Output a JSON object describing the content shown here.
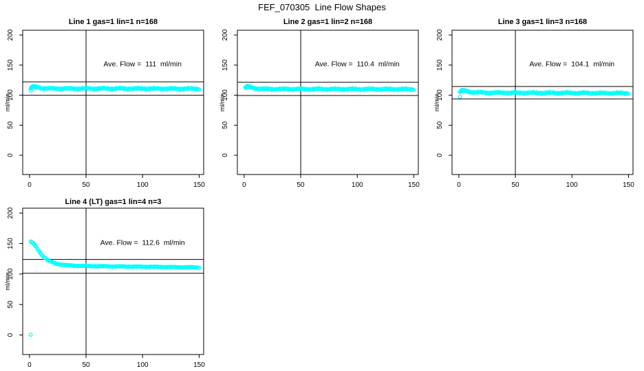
{
  "page_title": "FEF_070305  Line Flow Shapes",
  "chart_data": [
    {
      "type": "scatter",
      "title": "Line 1 gas=1 lin=1 n=168",
      "annotation": "Ave. Flow =  111  ml/min",
      "ave_flow": 111,
      "n": 168,
      "ylabel": "ml/min",
      "x_ticks": [
        0,
        50,
        100,
        150
      ],
      "y_ticks": [
        0,
        50,
        100,
        150,
        200
      ],
      "xlim": [
        -6,
        154
      ],
      "ylim": [
        -32,
        208
      ],
      "vline_x": 50,
      "hlines": [
        122.1,
        99.9
      ],
      "marker_color": "#00ffff",
      "annotation_pos": [
        100,
        148
      ],
      "x_range": [
        1,
        150
      ],
      "wobble": 0.9,
      "anchors": [
        [
          1,
          110.5
        ],
        [
          2,
          112.5
        ],
        [
          3,
          113.8
        ],
        [
          4,
          114.2
        ],
        [
          5,
          114
        ],
        [
          6,
          113.6
        ],
        [
          8,
          112.8
        ],
        [
          10,
          112
        ],
        [
          13,
          111.4
        ],
        [
          18,
          111
        ],
        [
          30,
          110.9
        ],
        [
          60,
          111
        ],
        [
          100,
          110.9
        ],
        [
          150,
          110.6
        ]
      ],
      "extra_points": [
        [
          1.5,
          112
        ],
        [
          2,
          113.5
        ],
        [
          2.5,
          114.5
        ],
        [
          3,
          115
        ],
        [
          3.5,
          114
        ],
        [
          4,
          115
        ],
        [
          4.5,
          113.5
        ],
        [
          5,
          114.5
        ],
        [
          5.5,
          113
        ],
        [
          6,
          114
        ],
        [
          7,
          113.5
        ],
        [
          8,
          113
        ]
      ],
      "outliers": [
        [
          1,
          107.5
        ]
      ]
    },
    {
      "type": "scatter",
      "title": "Line 2 gas=1 lin=2 n=168",
      "annotation": "Ave. Flow =  110.4  ml/min",
      "ave_flow": 110.4,
      "n": 168,
      "ylabel": "ml/min",
      "x_ticks": [
        0,
        50,
        100,
        150
      ],
      "y_ticks": [
        0,
        50,
        100,
        150,
        200
      ],
      "xlim": [
        -6,
        154
      ],
      "ylim": [
        -32,
        208
      ],
      "vline_x": 50,
      "hlines": [
        121.4,
        99.4
      ],
      "marker_color": "#00ffff",
      "annotation_pos": [
        100,
        148
      ],
      "x_range": [
        1,
        150
      ],
      "wobble": 0.9,
      "anchors": [
        [
          1,
          112
        ],
        [
          2,
          113.5
        ],
        [
          3,
          114.3
        ],
        [
          4,
          114
        ],
        [
          5,
          113.5
        ],
        [
          7,
          112.6
        ],
        [
          9,
          111.8
        ],
        [
          12,
          111
        ],
        [
          16,
          110.5
        ],
        [
          25,
          110.2
        ],
        [
          60,
          110.1
        ],
        [
          150,
          109.9
        ]
      ],
      "extra_points": [
        [
          1.5,
          112.5
        ],
        [
          2,
          114
        ],
        [
          2.5,
          115
        ],
        [
          3,
          114
        ],
        [
          3.5,
          115
        ],
        [
          4,
          113.5
        ],
        [
          4.5,
          114.5
        ],
        [
          5,
          113
        ],
        [
          6,
          113.5
        ],
        [
          7,
          112.5
        ],
        [
          8,
          112
        ]
      ],
      "outliers": []
    },
    {
      "type": "scatter",
      "title": "Line 3 gas=1 lin=3 n=168",
      "annotation": "Ave. Flow =  104.1  ml/min",
      "ave_flow": 104.1,
      "n": 168,
      "ylabel": "ml/min",
      "x_ticks": [
        0,
        50,
        100,
        150
      ],
      "y_ticks": [
        0,
        50,
        100,
        150,
        200
      ],
      "xlim": [
        -6,
        154
      ],
      "ylim": [
        -32,
        208
      ],
      "vline_x": 50,
      "hlines": [
        114.5,
        93.7
      ],
      "marker_color": "#00ffff",
      "annotation_pos": [
        100,
        148
      ],
      "x_range": [
        1,
        150
      ],
      "wobble": 0.9,
      "anchors": [
        [
          1,
          104.5
        ],
        [
          2,
          106.5
        ],
        [
          3,
          107.6
        ],
        [
          4,
          107.8
        ],
        [
          5,
          107.4
        ],
        [
          7,
          106.6
        ],
        [
          9,
          105.8
        ],
        [
          12,
          105
        ],
        [
          16,
          104.5
        ],
        [
          25,
          104.1
        ],
        [
          60,
          103.9
        ],
        [
          150,
          103.3
        ]
      ],
      "extra_points": [
        [
          1.5,
          105.5
        ],
        [
          2,
          107
        ],
        [
          2.5,
          108
        ],
        [
          3,
          107
        ],
        [
          3.5,
          108
        ],
        [
          4,
          106.5
        ],
        [
          5,
          107.5
        ],
        [
          6,
          107
        ],
        [
          7,
          106.5
        ],
        [
          8,
          106
        ]
      ],
      "outliers": [
        [
          1,
          97.5
        ]
      ]
    },
    {
      "type": "scatter",
      "title": "Line 4 (LT) gas=1 lin=4 n=3",
      "annotation": "Ave. Flow =  112.6  ml/min",
      "ave_flow": 112.6,
      "n": 3,
      "ylabel": "ml/min",
      "x_ticks": [
        0,
        50,
        100,
        150
      ],
      "y_ticks": [
        0,
        50,
        100,
        150,
        200
      ],
      "xlim": [
        -6,
        154
      ],
      "ylim": [
        -32,
        208
      ],
      "vline_x": 50,
      "hlines": [
        123.9,
        101.3
      ],
      "marker_color": "#00ffff",
      "annotation_pos": [
        100,
        148
      ],
      "x_range": [
        1,
        150
      ],
      "wobble": 0.45,
      "anchors": [
        [
          1,
          153
        ],
        [
          2,
          152.3
        ],
        [
          3,
          150.8
        ],
        [
          4,
          148.8
        ],
        [
          5,
          146.4
        ],
        [
          6,
          143.8
        ],
        [
          7,
          141.2
        ],
        [
          8,
          138.6
        ],
        [
          9,
          136
        ],
        [
          10,
          133.6
        ],
        [
          11,
          131.4
        ],
        [
          12,
          129.4
        ],
        [
          13,
          127.6
        ],
        [
          14,
          126
        ],
        [
          15,
          124.5
        ],
        [
          16,
          123.2
        ],
        [
          17,
          122
        ],
        [
          18,
          121
        ],
        [
          19,
          120.1
        ],
        [
          20,
          119.3
        ],
        [
          22,
          118
        ],
        [
          24,
          117
        ],
        [
          26,
          116.2
        ],
        [
          28,
          115.6
        ],
        [
          30,
          115.1
        ],
        [
          34,
          114.4
        ],
        [
          38,
          113.9
        ],
        [
          45,
          113.4
        ],
        [
          55,
          113
        ],
        [
          70,
          112.6
        ],
        [
          90,
          112.2
        ],
        [
          110,
          111.8
        ],
        [
          130,
          111.3
        ],
        [
          150,
          110.9
        ]
      ],
      "extra_points": [],
      "outliers": [
        [
          1,
          0.5
        ]
      ]
    }
  ]
}
